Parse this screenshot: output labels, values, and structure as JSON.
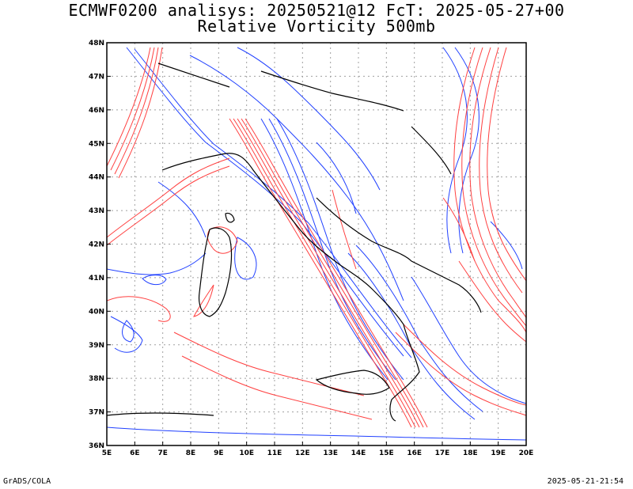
{
  "header": {
    "title_line1": "ECMWF0200 analisys: 20250521@12 FcT: 2025-05-27+00",
    "title_line2": "Relative Vorticity 500mb"
  },
  "map": {
    "projection": "lat-lon",
    "lon_range": [
      5,
      20
    ],
    "lat_range": [
      36,
      48
    ],
    "lon_ticks": [
      "5E",
      "6E",
      "7E",
      "8E",
      "9E",
      "10E",
      "11E",
      "12E",
      "13E",
      "14E",
      "15E",
      "16E",
      "17E",
      "18E",
      "19E",
      "20E"
    ],
    "lat_ticks": [
      "36N",
      "37N",
      "38N",
      "39N",
      "40N",
      "41N",
      "42N",
      "43N",
      "44N",
      "45N",
      "46N",
      "47N",
      "48N"
    ],
    "gridlines": "dotted",
    "colors": {
      "positive_contours": "#ff4040",
      "negative_contours": "#2040ff",
      "coastlines": "#000000",
      "grid": "#a0a0a0"
    }
  },
  "footer": {
    "credit": "GrADS/COLA",
    "timestamp": "2025-05-21-21:54"
  }
}
